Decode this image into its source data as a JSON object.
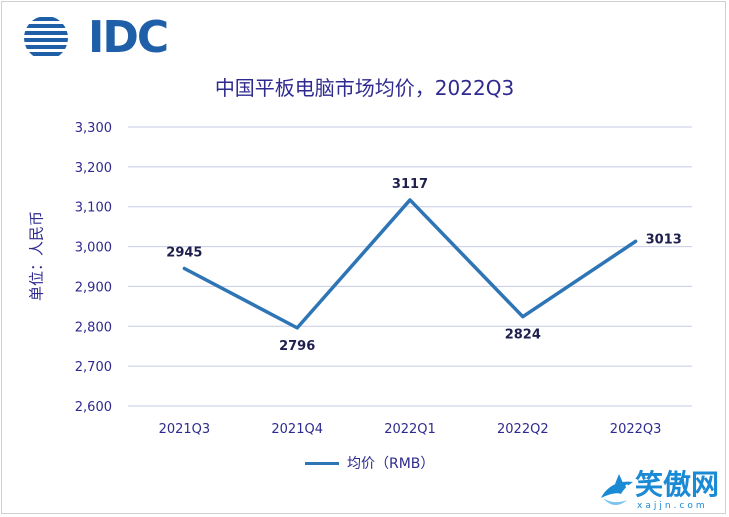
{
  "logo": {
    "text": "IDC"
  },
  "chart_data": {
    "type": "line",
    "title": "中国平板电脑市场均价，2022Q3",
    "ylabel": "单位：人民币",
    "xlabel": "",
    "categories": [
      "2021Q3",
      "2021Q4",
      "2022Q1",
      "2022Q2",
      "2022Q3"
    ],
    "series": [
      {
        "name": "均价（RMB）",
        "values": [
          2945,
          2796,
          3117,
          2824,
          3013
        ]
      }
    ],
    "data_labels": [
      "2945",
      "2796",
      "3117",
      "2824",
      "3013"
    ],
    "y_ticks": [
      "2,600",
      "2,700",
      "2,800",
      "2,900",
      "3,000",
      "3,100",
      "3,200",
      "3,300"
    ],
    "ylim": [
      2600,
      3300
    ],
    "grid": true,
    "legend_position": "bottom",
    "colors": {
      "line": "#2e75b6",
      "grid": "#c8cbe8",
      "text": "#2f2a8f"
    }
  },
  "watermark": {
    "text": "笑傲网",
    "sub": "xajjn.com"
  }
}
